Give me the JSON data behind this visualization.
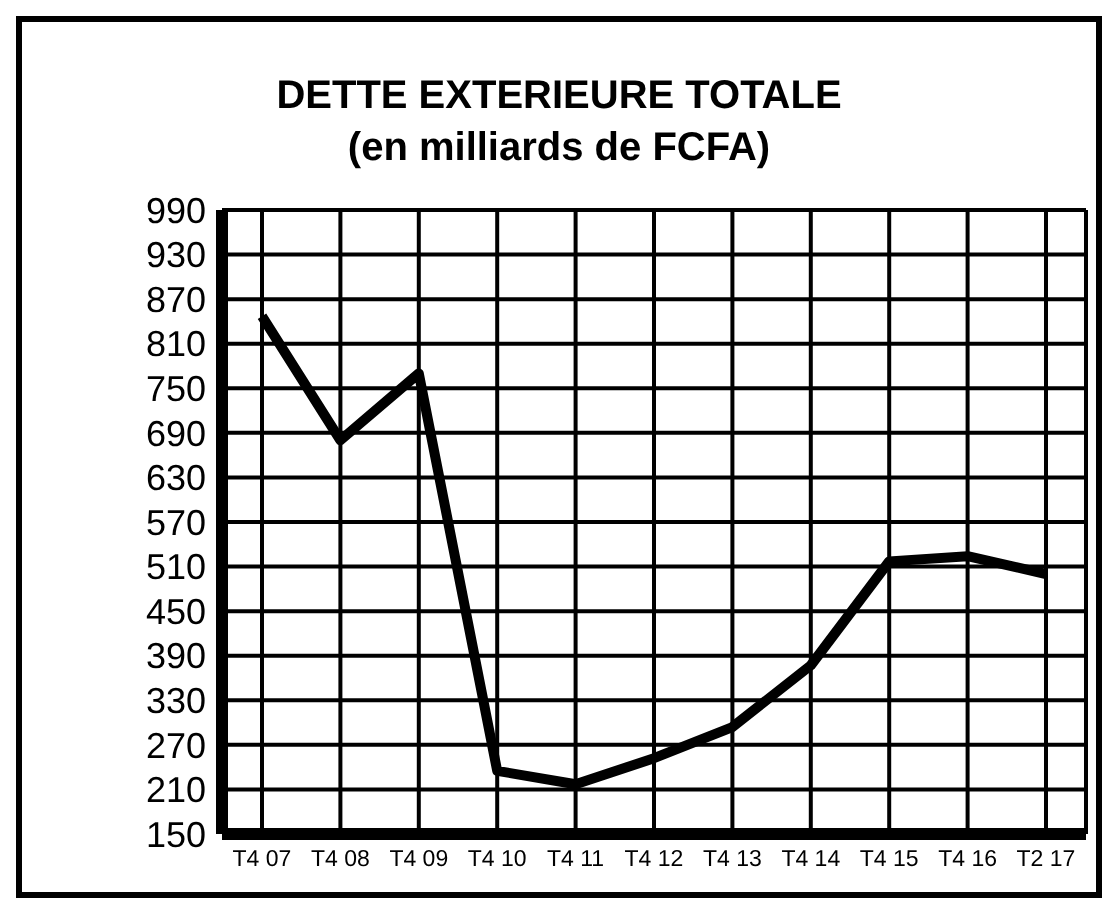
{
  "chart_data": {
    "type": "line",
    "title": "DETTE EXTERIEURE TOTALE",
    "subtitle": "(en milliards de FCFA)",
    "categories": [
      "T4 07",
      "T4 08",
      "T4 09",
      "T4 10",
      "T4 11",
      "T4 12",
      "T4 13",
      "T4 14",
      "T4 15",
      "T4 16",
      "T2 17"
    ],
    "series": [
      {
        "color": "#000000",
        "values": [
          847,
          680,
          770,
          235,
          217,
          252,
          294,
          377,
          517,
          524,
          500
        ]
      }
    ],
    "ylim": [
      150,
      990
    ],
    "yticks": [
      150,
      210,
      270,
      330,
      390,
      450,
      510,
      570,
      630,
      690,
      750,
      810,
      870,
      930,
      990
    ],
    "grid": true,
    "marker": "none",
    "line_style": "solid"
  }
}
